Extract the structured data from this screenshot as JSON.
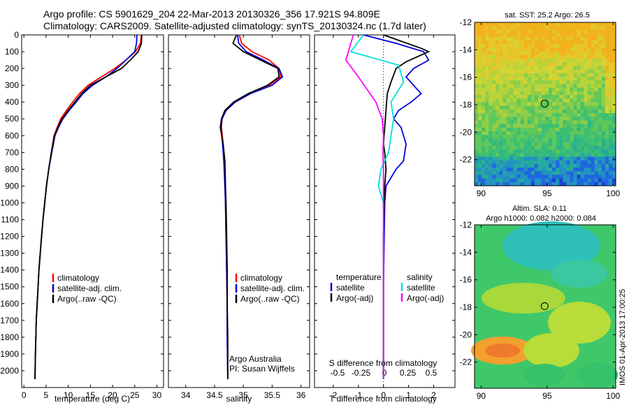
{
  "header": {
    "line1": "Argo profile: CS 5901629_204 22-Mar-2013 20130326_356 17.921S 94.809E",
    "line2": "Climatology: CARS2009. Satellite-adjusted climatology: synTS_20130324.nc (1.7d later)"
  },
  "colors": {
    "climatology": "#ff0000",
    "satellite": "#0000dd",
    "argo": "#000000",
    "argo_salinity_diff": "#ff00ff",
    "satellite_salinity_diff": "#00e0e0"
  },
  "legend_common": {
    "climatology": "climatology",
    "satellite": "satellite-adj. clim.",
    "argo": "Argo(..raw -QC)"
  },
  "credits": {
    "program": "Argo Australia",
    "pi": "PI: Susan Wijffels",
    "stamp": "IMOS 01-Apr-2013 17:00:25"
  },
  "diff_legend": {
    "temperature_title": "temperature",
    "salinity_title": "salinity",
    "satellite": "satellite",
    "argo": "Argo(-adj)"
  },
  "map_titles": {
    "sst": "sat. SST: 25.2  Argo: 26.5",
    "sla_line1": "Altim. SLA: 0.11",
    "sla_line2": "Argo h1000: 0.082  h2000: 0.084"
  },
  "chart_data": [
    {
      "type": "line",
      "panel": "temperature",
      "xlabel": "temperature (deg C)",
      "ylabel": "",
      "xlim": [
        -0.5,
        31.5
      ],
      "ylim": [
        2100,
        0
      ],
      "xticks": [
        0,
        5,
        10,
        15,
        20,
        25,
        30
      ],
      "yticks": [
        0,
        100,
        200,
        300,
        400,
        500,
        600,
        700,
        800,
        900,
        1000,
        1100,
        1200,
        1300,
        1400,
        1500,
        1600,
        1700,
        1800,
        1900,
        2000
      ],
      "series": [
        {
          "name": "climatology",
          "color_key": "climatology",
          "x": [
            26.5,
            26.3,
            25.2,
            23,
            20.5,
            17.5,
            14.5,
            12.5,
            11,
            9.6,
            8.3,
            7.5,
            6.8,
            6.2,
            5.6,
            5.1,
            4.7,
            4.3,
            4.0,
            3.7,
            3.4,
            3.2,
            3.0,
            2.8,
            2.6,
            2.5
          ],
          "y": [
            0,
            50,
            100,
            150,
            200,
            250,
            300,
            350,
            400,
            450,
            500,
            550,
            600,
            700,
            800,
            900,
            1000,
            1100,
            1200,
            1300,
            1400,
            1500,
            1600,
            1700,
            1900,
            2050
          ]
        },
        {
          "name": "satellite-adj. clim.",
          "color_key": "satellite",
          "x": [
            25.5,
            25.4,
            25.0,
            23,
            21,
            18.5,
            15.5,
            13.3,
            11.8,
            10.2,
            8.8,
            7.8,
            7.0,
            6.3,
            5.6,
            5.1,
            4.7,
            4.3,
            4.0,
            3.7,
            3.4,
            3.2,
            3.0,
            2.8,
            2.6,
            2.5
          ],
          "y": [
            0,
            50,
            100,
            150,
            200,
            250,
            300,
            350,
            400,
            450,
            500,
            550,
            600,
            700,
            800,
            900,
            1000,
            1100,
            1200,
            1300,
            1400,
            1500,
            1600,
            1700,
            1900,
            2050
          ]
        },
        {
          "name": "Argo(..raw -QC)",
          "color_key": "argo",
          "x": [
            26.6,
            26.5,
            25.8,
            24,
            22,
            18.5,
            15,
            13,
            11.5,
            10,
            8.6,
            7.7,
            6.9,
            6.2,
            5.6,
            5.1,
            4.7,
            4.3,
            4.0,
            3.7,
            3.4,
            3.2,
            3.0,
            2.8,
            2.6,
            2.5
          ],
          "y": [
            0,
            50,
            100,
            150,
            200,
            250,
            300,
            350,
            400,
            450,
            500,
            550,
            600,
            700,
            800,
            900,
            1000,
            1100,
            1200,
            1300,
            1400,
            1500,
            1600,
            1700,
            1900,
            2050
          ]
        }
      ],
      "legend": [
        "climatology",
        "satellite-adj. clim.",
        "Argo(..raw -QC)"
      ]
    },
    {
      "type": "line",
      "panel": "salinity",
      "xlabel": "salinity",
      "ylabel": "",
      "xlim": [
        33.7,
        36.15
      ],
      "ylim": [
        2100,
        0
      ],
      "xticks": [
        34,
        34.5,
        35,
        35.5,
        36
      ],
      "series": [
        {
          "name": "climatology",
          "color_key": "climatology",
          "x": [
            34.93,
            34.97,
            35.15,
            35.45,
            35.62,
            35.65,
            35.45,
            35.1,
            34.85,
            34.7,
            34.63,
            34.62,
            34.65,
            34.67,
            34.68,
            34.69,
            34.7,
            34.71,
            34.72,
            34.72,
            34.73
          ],
          "y": [
            0,
            50,
            100,
            150,
            200,
            250,
            300,
            350,
            400,
            450,
            500,
            550,
            650,
            750,
            900,
            1000,
            1200,
            1400,
            1600,
            1800,
            2050
          ]
        },
        {
          "name": "satellite-adj. clim.",
          "color_key": "satellite",
          "x": [
            34.9,
            34.92,
            35.05,
            35.35,
            35.62,
            35.68,
            35.5,
            35.12,
            34.86,
            34.7,
            34.63,
            34.61,
            34.64,
            34.66,
            34.68,
            34.69,
            34.7,
            34.71,
            34.72,
            34.72,
            34.73
          ],
          "y": [
            0,
            50,
            100,
            150,
            200,
            250,
            300,
            350,
            400,
            450,
            500,
            550,
            650,
            750,
            900,
            1000,
            1200,
            1400,
            1600,
            1800,
            2050
          ]
        },
        {
          "name": "Argo(..raw -QC)",
          "color_key": "argo",
          "x": [
            34.88,
            34.82,
            35.0,
            35.3,
            35.6,
            35.62,
            35.42,
            35.08,
            34.83,
            34.68,
            34.62,
            34.6,
            34.65,
            34.68,
            34.69,
            34.7,
            34.71,
            34.72,
            34.72,
            34.73,
            34.73
          ],
          "y": [
            0,
            50,
            100,
            150,
            200,
            250,
            300,
            350,
            400,
            450,
            500,
            550,
            650,
            750,
            900,
            1000,
            1200,
            1400,
            1600,
            1800,
            2050
          ]
        }
      ],
      "legend": [
        "climatology",
        "satellite-adj. clim.",
        "Argo(..raw -QC)"
      ]
    },
    {
      "type": "line",
      "panel": "difference",
      "xlabel": "T difference from climatology",
      "xlabel_top": "S difference from climatology",
      "xlim": [
        -2.75,
        2.85
      ],
      "ylim": [
        2100,
        0
      ],
      "xticks": [
        -2,
        -1,
        0,
        1,
        2
      ],
      "xtick_labels_s": [
        "-0.5",
        "-0.25",
        "0",
        "0.25",
        "0.5"
      ],
      "series": [
        {
          "name": "temperature satellite",
          "color_key": "satellite",
          "x": [
            -0.8,
            0.5,
            1.6,
            1.8,
            1.2,
            0.9,
            1.5,
            1.1,
            0.6,
            0.4,
            0.7,
            0.9,
            0.8,
            0.5,
            0.1,
            0.05,
            0,
            0
          ],
          "y": [
            0,
            50,
            100,
            150,
            200,
            250,
            350,
            400,
            450,
            500,
            550,
            650,
            750,
            800,
            900,
            1000,
            1500,
            2050
          ]
        },
        {
          "name": "temperature Argo(-adj)",
          "color_key": "argo",
          "x": [
            0,
            1.5,
            1.8,
            0.9,
            0.5,
            0.3,
            0.15,
            0.1,
            0.05,
            0.0,
            0.05,
            0.1,
            0.05,
            0,
            0,
            0
          ],
          "y": [
            0,
            80,
            100,
            160,
            200,
            280,
            350,
            450,
            550,
            650,
            700,
            800,
            900,
            1200,
            1600,
            2050
          ]
        },
        {
          "name": "salinity satellite",
          "color_key": "satellite_salinity_diff",
          "x": [
            -0.8,
            -1.3,
            0.6,
            0.8,
            0.3,
            0.4,
            0.3,
            0.2,
            -0.1,
            -0.2,
            0,
            0,
            0
          ],
          "y": [
            0,
            100,
            180,
            280,
            400,
            500,
            600,
            700,
            800,
            900,
            1000,
            1500,
            2050
          ]
        },
        {
          "name": "salinity Argo(-adj)",
          "color_key": "argo_salinity_diff",
          "x": [
            -1.2,
            -1.5,
            -1.0,
            -0.3,
            -0.05,
            0.0,
            -0.02,
            0,
            0,
            0
          ],
          "y": [
            0,
            150,
            250,
            400,
            500,
            600,
            700,
            800,
            1200,
            2050
          ]
        }
      ],
      "legend": {
        "temperature": [
          "satellite",
          "Argo(-adj)"
        ],
        "salinity": [
          "satellite",
          "Argo(-adj)"
        ]
      }
    },
    {
      "type": "heatmap",
      "panel": "sst-map",
      "title": "sat. SST: 25.2  Argo: 26.5",
      "xlim": [
        89.5,
        100.2
      ],
      "ylim": [
        -23.9,
        -12
      ],
      "xticks": [
        90,
        95,
        100
      ],
      "yticks": [
        -12,
        -14,
        -16,
        -18,
        -20,
        -22
      ],
      "marker": {
        "lon": 94.81,
        "lat": -17.92
      }
    },
    {
      "type": "heatmap",
      "panel": "sla-map",
      "title": "Altim. SLA: 0.11",
      "xlim": [
        89.5,
        100.2
      ],
      "ylim": [
        -23.9,
        -12
      ],
      "xticks": [
        90,
        95,
        100
      ],
      "yticks": [
        -12,
        -14,
        -16,
        -18,
        -20,
        -22
      ],
      "marker": {
        "lon": 94.81,
        "lat": -17.92
      }
    }
  ]
}
